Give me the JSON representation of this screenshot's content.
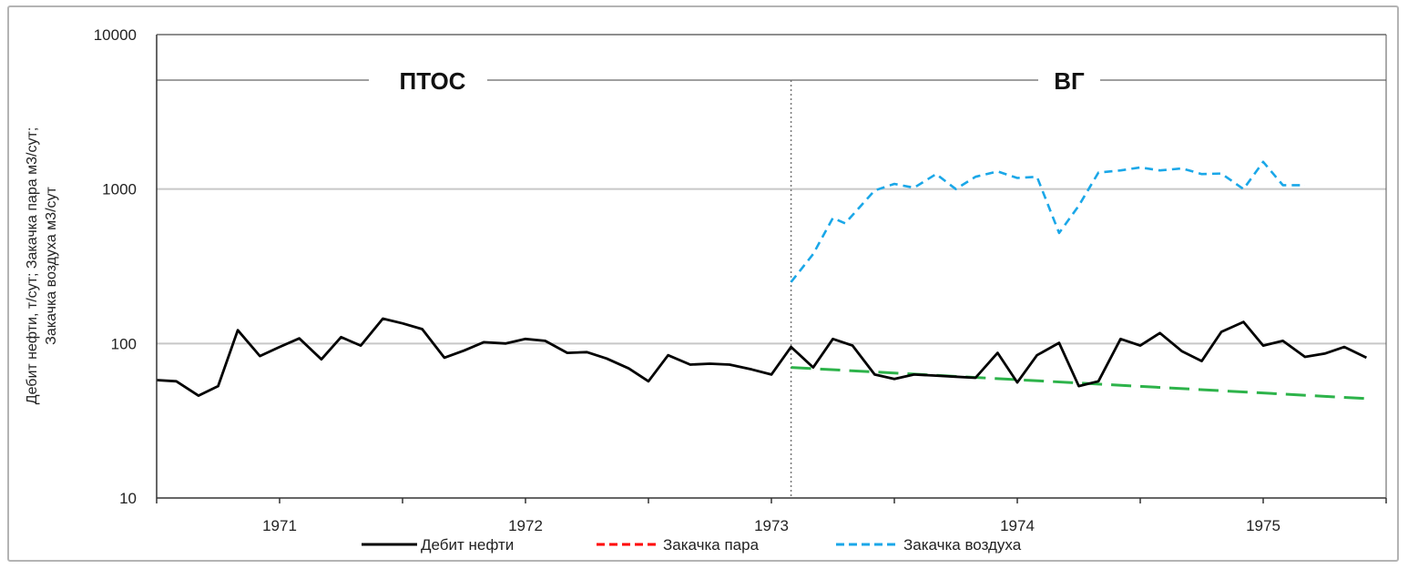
{
  "chart_data": {
    "type": "line",
    "y_scale": "log",
    "ylim": [
      10,
      10000
    ],
    "y_ticks": [
      "10",
      "100",
      "1000",
      "10000"
    ],
    "x_ticks": [
      "1971",
      "1972",
      "1973",
      "1974",
      "1975"
    ],
    "ylabel_lines": [
      "Дебит нефти, т/сут; Закачка пара м3/сут;",
      "Закачка воздуха м3/сут"
    ],
    "phases": [
      "ПТОС",
      "ВГ"
    ],
    "legend_position": "bottom",
    "grid": true,
    "series": [
      {
        "name": "Дебит нефти",
        "color": "#000000",
        "style": "solid",
        "x": [
          1970.5,
          1970.58,
          1970.67,
          1970.75,
          1970.83,
          1970.92,
          1971.0,
          1971.08,
          1971.17,
          1971.25,
          1971.33,
          1971.42,
          1971.5,
          1971.58,
          1971.67,
          1971.75,
          1971.83,
          1971.92,
          1972.0,
          1972.08,
          1972.17,
          1972.25,
          1972.33,
          1972.42,
          1972.5,
          1972.58,
          1972.67,
          1972.75,
          1972.83,
          1972.92,
          1973.0,
          1973.08,
          1973.17,
          1973.25,
          1973.33,
          1973.42,
          1973.5,
          1973.58,
          1973.67,
          1973.75,
          1973.83,
          1973.92,
          1974.0,
          1974.08,
          1974.17,
          1974.25,
          1974.33,
          1974.42,
          1974.5,
          1974.58,
          1974.67,
          1974.75,
          1974.83,
          1974.92,
          1975.0,
          1975.08,
          1975.17,
          1975.25,
          1975.33,
          1975.42
        ],
        "values": [
          58,
          57,
          46,
          53,
          122,
          83,
          95,
          108,
          79,
          110,
          97,
          145,
          135,
          124,
          81,
          90,
          102,
          100,
          107,
          104,
          87,
          88,
          80,
          69,
          57,
          84,
          73,
          74,
          73,
          68,
          63,
          95,
          70,
          107,
          97,
          63,
          59,
          63,
          62,
          61,
          60,
          87,
          56,
          84,
          101,
          53,
          57,
          107,
          97,
          117,
          89,
          77,
          119,
          138,
          97,
          104,
          82,
          86,
          95,
          81
        ]
      },
      {
        "name": "Закачка пара",
        "color": "#ff0000",
        "style": "dashed",
        "x": [],
        "values": []
      },
      {
        "name": "Закачка воздуха",
        "color": "#1aa7e8",
        "style": "dashed",
        "x": [
          1973.08,
          1973.17,
          1973.25,
          1973.3,
          1973.42,
          1973.5,
          1973.58,
          1973.67,
          1973.75,
          1973.83,
          1973.92,
          1974.0,
          1974.08,
          1974.17,
          1974.25,
          1974.33,
          1974.42,
          1974.5,
          1974.58,
          1974.67,
          1974.75,
          1974.83,
          1974.92,
          1975.0,
          1975.08,
          1975.17
        ],
        "values": [
          250,
          380,
          650,
          600,
          980,
          1080,
          1020,
          1250,
          1000,
          1200,
          1300,
          1180,
          1200,
          520,
          780,
          1280,
          1320,
          1380,
          1320,
          1360,
          1250,
          1260,
          1000,
          1500,
          1060,
          1060
        ]
      }
    ],
    "trend": {
      "color": "#2db34a",
      "style": "dashed",
      "x": [
        1973.08,
        1975.42
      ],
      "values": [
        70,
        44
      ]
    }
  }
}
